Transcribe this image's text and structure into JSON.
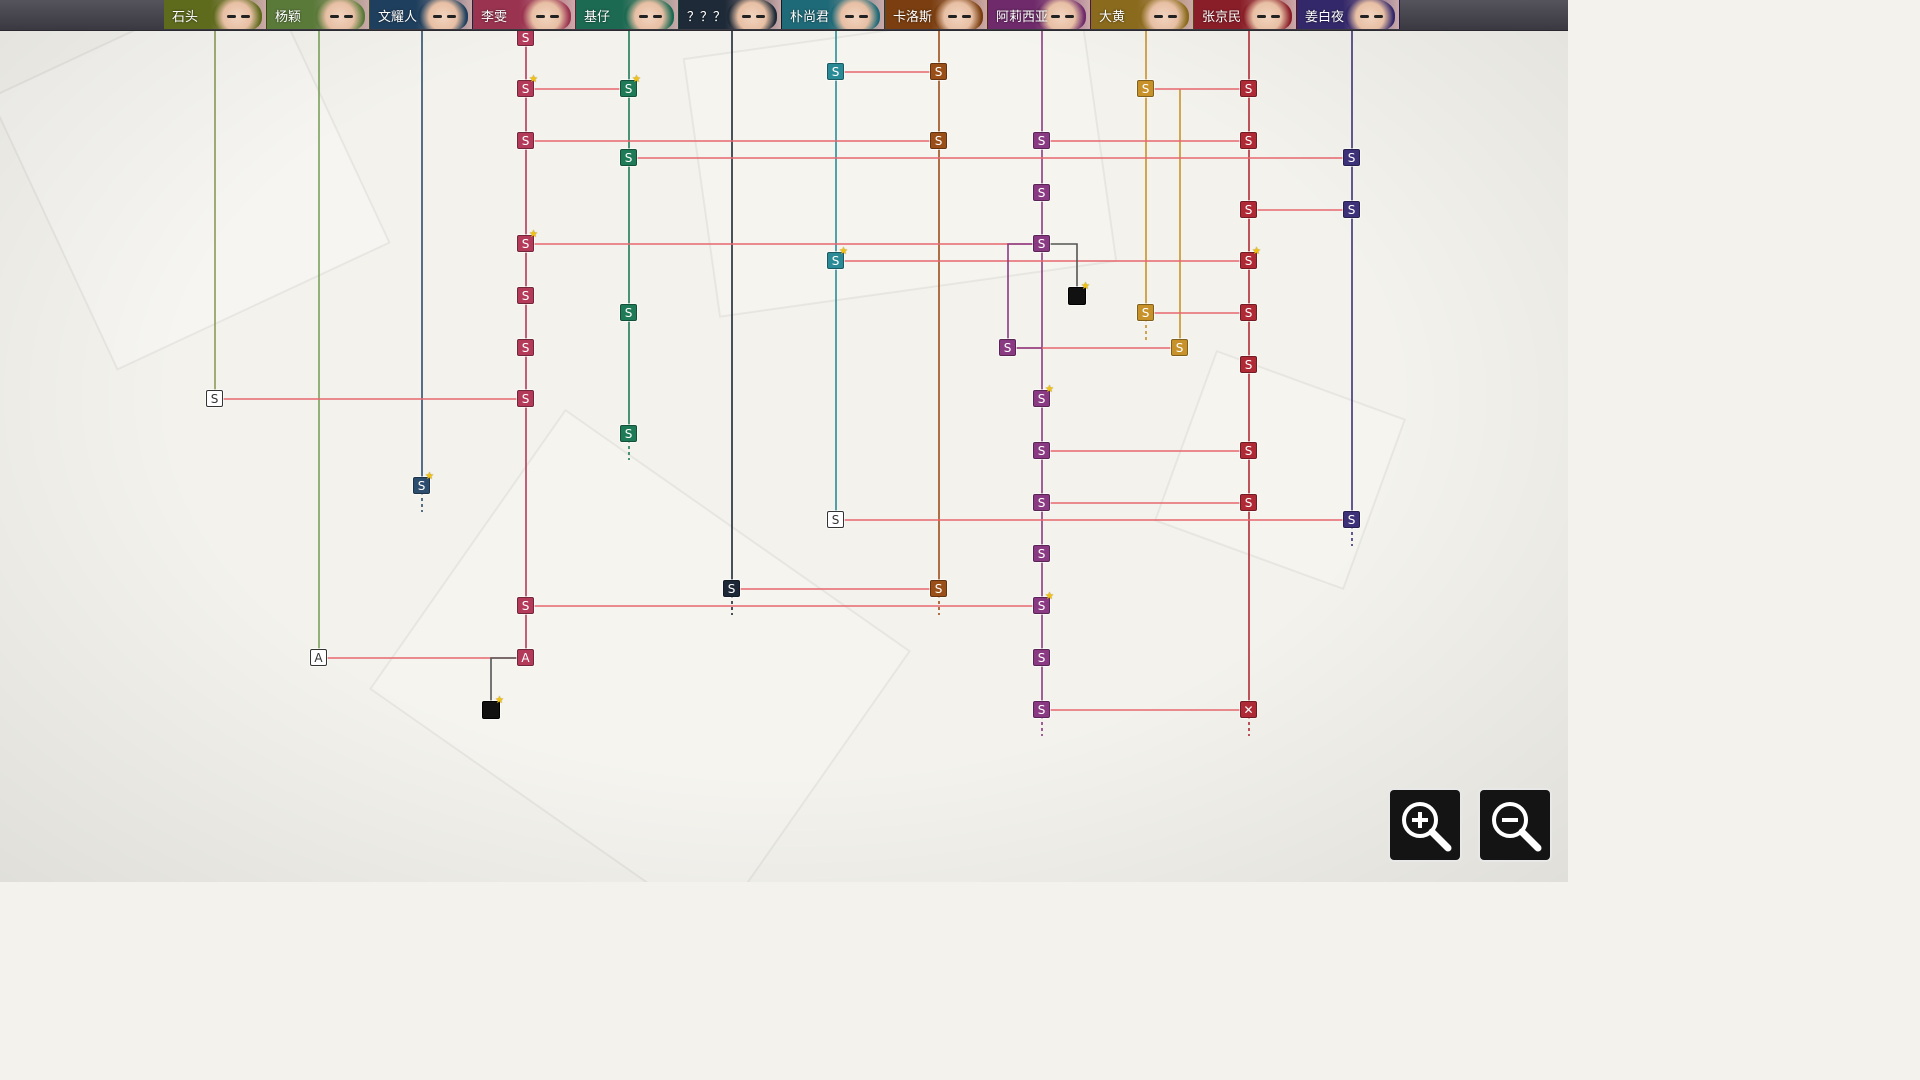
{
  "characters": [
    {
      "name": "石头",
      "color": "#5e6a1c",
      "node_color": "#8a9a55"
    },
    {
      "name": "杨颖",
      "color": "#5a7a3a",
      "node_color": "#7ba05a"
    },
    {
      "name": "文耀人",
      "color": "#1e3f5e",
      "node_color": "#2d4d6e"
    },
    {
      "name": "李雯",
      "color": "#9a3350",
      "node_color": "#b43a5a"
    },
    {
      "name": "基仔",
      "color": "#1c6a52",
      "node_color": "#1f7a58"
    },
    {
      "name": "？？？",
      "color": "#1e2a38",
      "node_color": "#1c2836"
    },
    {
      "name": "朴尚君",
      "color": "#1f6a78",
      "node_color": "#2a8a96"
    },
    {
      "name": "卡洛斯",
      "color": "#7a3e10",
      "node_color": "#9a4e18"
    },
    {
      "name": "阿莉西亚",
      "color": "#6e2a6a",
      "node_color": "#8a3a82"
    },
    {
      "name": "大黄",
      "color": "#8a6a1c",
      "node_color": "#c8922a"
    },
    {
      "name": "张京民",
      "color": "#8a1e28",
      "node_color": "#b02a36"
    },
    {
      "name": "姜白夜",
      "color": "#33286a",
      "node_color": "#3d327a"
    }
  ],
  "node_labels": {
    "story": "S",
    "alt": "A",
    "end": "✕",
    "new_marker": "★"
  },
  "zoom": {
    "in_label": "zoom in",
    "out_label": "zoom out"
  }
}
